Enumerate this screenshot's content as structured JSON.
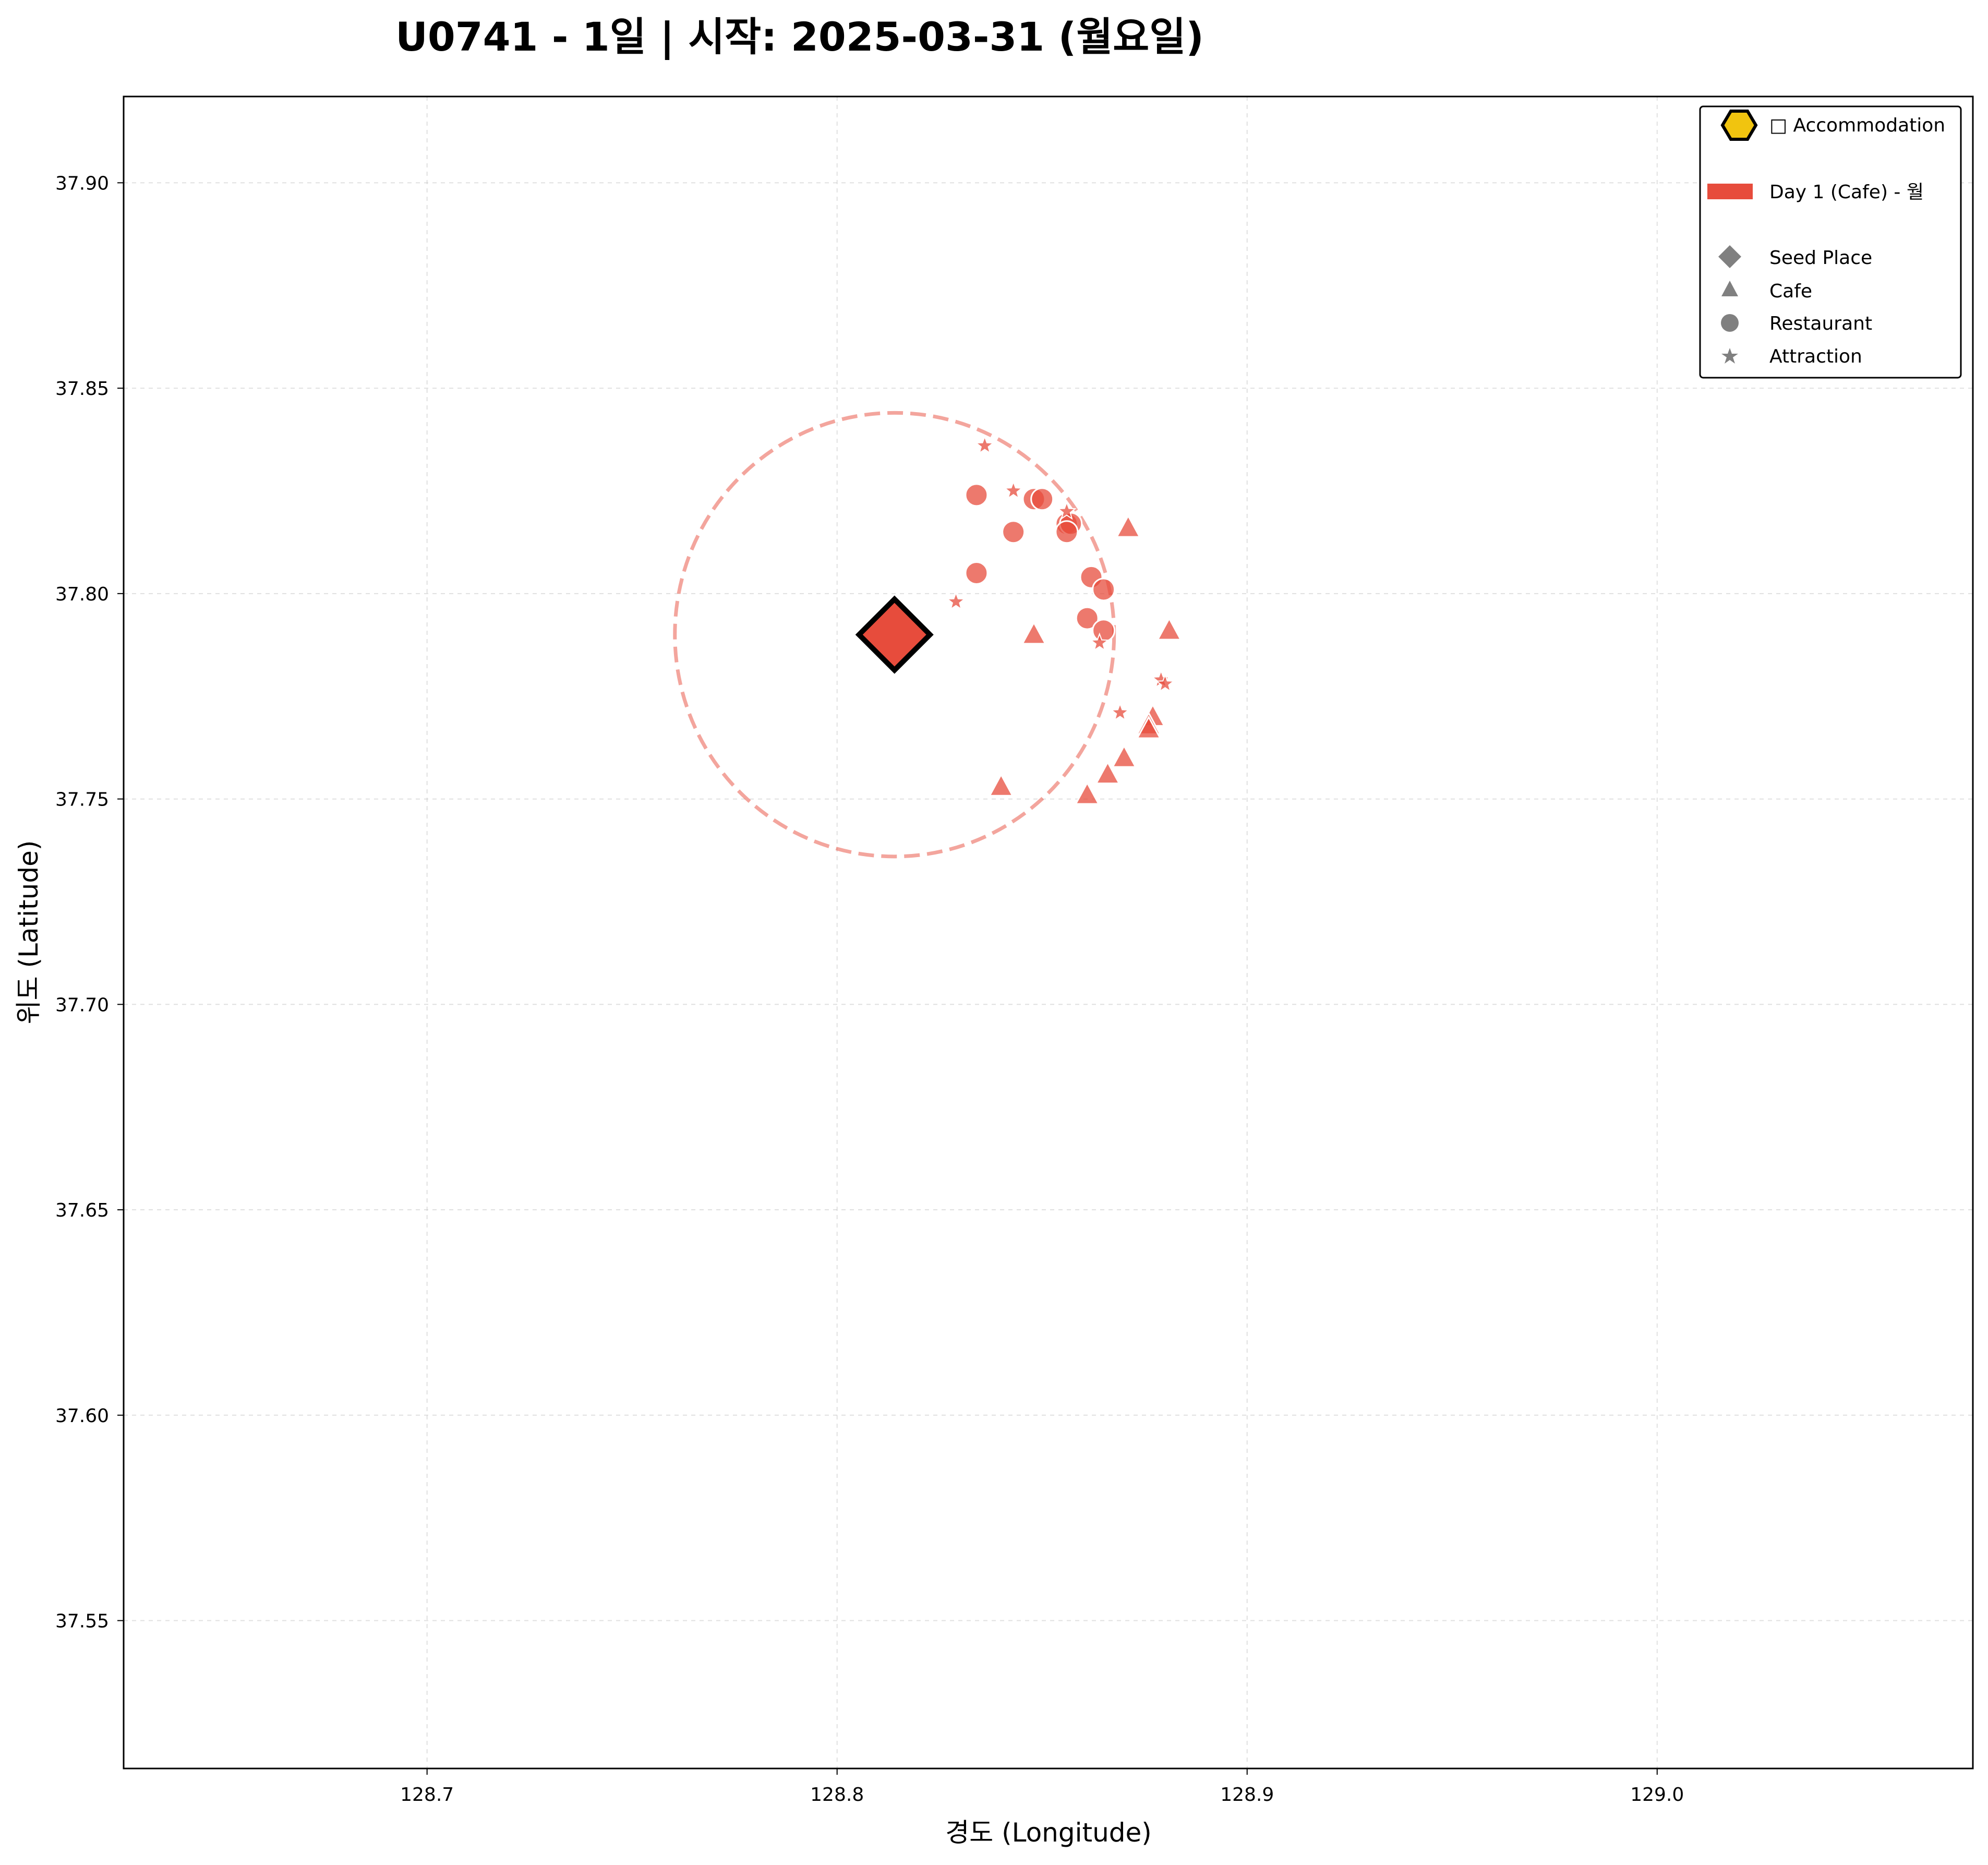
{
  "chart_data": {
    "type": "scatter",
    "title": "U0741 - 1일 | 시작: 2025-03-31 (월요일)",
    "xlabel": "경도 (Longitude)",
    "ylabel": "위도 (Latitude)",
    "xlim": [
      128.626,
      129.077
    ],
    "ylim": [
      37.514,
      37.921
    ],
    "xticks": [
      "128.7",
      "128.8",
      "128.9",
      "129.0"
    ],
    "xtick_values": [
      128.7,
      128.8,
      128.9,
      129.0
    ],
    "yticks": [
      "37.55",
      "37.60",
      "37.65",
      "37.70",
      "37.75",
      "37.80",
      "37.85",
      "37.90"
    ],
    "ytick_values": [
      37.55,
      37.6,
      37.65,
      37.7,
      37.75,
      37.8,
      37.85,
      37.9
    ],
    "grid": true,
    "legend_position": "top-right",
    "legend": {
      "accommodation": "□ Accommodation",
      "day": "Day 1 (Cafe) - 월",
      "seed": "Seed Place",
      "cafe": "Cafe",
      "restaurant": "Restaurant",
      "attraction": "Attraction"
    },
    "colors": {
      "day1": "#e74c3c",
      "accommodation_fill": "#f1c40f",
      "circle": "#e74c3c",
      "legend_marker": "#808080"
    },
    "seed_place": {
      "x": 128.814,
      "y": 37.79
    },
    "radius_circle": {
      "center_x": 128.814,
      "center_y": 37.79,
      "radius_lat": 0.054
    },
    "points": {
      "cafe": [
        {
          "x": 128.871,
          "y": 37.816
        },
        {
          "x": 128.848,
          "y": 37.79
        },
        {
          "x": 128.881,
          "y": 37.791
        },
        {
          "x": 128.877,
          "y": 37.77
        },
        {
          "x": 128.876,
          "y": 37.768
        },
        {
          "x": 128.876,
          "y": 37.767
        },
        {
          "x": 128.87,
          "y": 37.76
        },
        {
          "x": 128.866,
          "y": 37.756
        },
        {
          "x": 128.84,
          "y": 37.753
        },
        {
          "x": 128.861,
          "y": 37.751
        }
      ],
      "restaurant": [
        {
          "x": 128.834,
          "y": 37.824
        },
        {
          "x": 128.848,
          "y": 37.823
        },
        {
          "x": 128.85,
          "y": 37.823
        },
        {
          "x": 128.856,
          "y": 37.817
        },
        {
          "x": 128.857,
          "y": 37.817
        },
        {
          "x": 128.843,
          "y": 37.815
        },
        {
          "x": 128.856,
          "y": 37.815
        },
        {
          "x": 128.834,
          "y": 37.805
        },
        {
          "x": 128.862,
          "y": 37.804
        },
        {
          "x": 128.865,
          "y": 37.801
        },
        {
          "x": 128.861,
          "y": 37.794
        },
        {
          "x": 128.865,
          "y": 37.791
        }
      ],
      "attraction": [
        {
          "x": 128.836,
          "y": 37.836
        },
        {
          "x": 128.843,
          "y": 37.825
        },
        {
          "x": 128.856,
          "y": 37.82
        },
        {
          "x": 128.829,
          "y": 37.798
        },
        {
          "x": 128.864,
          "y": 37.788
        },
        {
          "x": 128.879,
          "y": 37.779
        },
        {
          "x": 128.88,
          "y": 37.778
        },
        {
          "x": 128.869,
          "y": 37.771
        }
      ]
    }
  }
}
